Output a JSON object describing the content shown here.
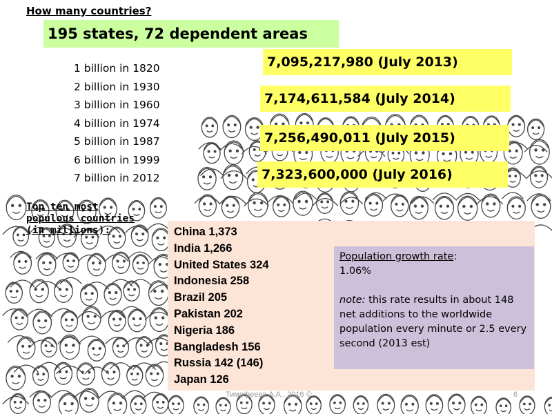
{
  "heading": "How many countries?",
  "states_summary": "195 states,  72 dependent areas",
  "milestones": [
    "1 billion in 1820",
    "2 billion in 1930",
    "3 billion in 1960",
    "4 billion in 1974",
    "5 billion in 1987",
    "6 billion in 1999",
    "7 billion in 2012"
  ],
  "population_estimates": [
    "7,095,217,980 (July 2013)",
    "7,174,611,584 (July 2014)",
    "7,256,490,011 (July 2015)",
    "7,323,600,000 (July 2016)"
  ],
  "top_ten": {
    "title_lines": [
      "Top ten most",
      "populous countries",
      "(in millions):"
    ],
    "countries": [
      "China 1,373",
      "India 1,266",
      "United States 324",
      "Indonesia 258",
      "Brazil 205",
      "Pakistan 202",
      "Nigeria 186",
      "Bangladesh 156",
      "Russia 142 (146)",
      "Japan 126"
    ]
  },
  "growth": {
    "label": "Population growth rate",
    "colon": ":",
    "rate": "1.06%",
    "note_label": "note:",
    "note_text": " this rate results in about 148 net additions to the worldwide population every minute or 2.5 every second (2013 est)"
  },
  "footer": "Тимофеева А.А., 2016 ©",
  "page_number": "6",
  "colors": {
    "green_box": "#ccffa0",
    "yellow_box": "#ffff66",
    "pink_box": "#fce4d6",
    "purple_box": "#ccc0da"
  }
}
